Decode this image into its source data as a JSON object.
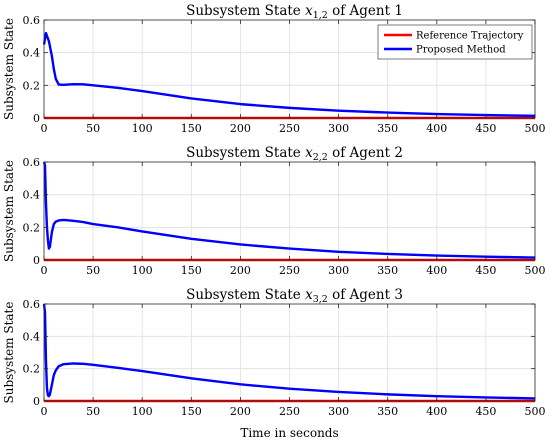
{
  "chart_data": [
    {
      "type": "line",
      "title": "Subsystem State x1,2 of Agent 1",
      "title_parts": {
        "prefix": "Subsystem State ",
        "var": "x",
        "sub": "1,2",
        "suffix": " of Agent 1"
      },
      "ylabel": "Subsystem State",
      "xlabel": "",
      "xlim": [
        0,
        500
      ],
      "ylim": [
        0,
        0.6
      ],
      "xticks": [
        0,
        50,
        100,
        150,
        200,
        250,
        300,
        350,
        400,
        450,
        500
      ],
      "yticks": [
        0,
        0.2,
        0.4,
        0.6
      ],
      "grid": true,
      "legend": {
        "placement": "top-right",
        "entries": [
          {
            "label": "Reference Trajectory",
            "color": "#ff0000"
          },
          {
            "label": "Proposed Method",
            "color": "#0000ff"
          }
        ]
      },
      "series": [
        {
          "name": "Reference Trajectory",
          "color": "#ff0000",
          "x": [
            0,
            500
          ],
          "y": [
            0,
            0
          ]
        },
        {
          "name": "Proposed Method",
          "color": "#0000ff",
          "x": [
            0,
            2,
            5,
            8,
            10,
            12,
            15,
            20,
            30,
            40,
            50,
            75,
            100,
            150,
            200,
            250,
            300,
            350,
            400,
            450,
            500
          ],
          "y": [
            0.45,
            0.52,
            0.47,
            0.38,
            0.3,
            0.24,
            0.205,
            0.203,
            0.207,
            0.206,
            0.2,
            0.185,
            0.165,
            0.12,
            0.085,
            0.062,
            0.045,
            0.033,
            0.024,
            0.018,
            0.013
          ]
        }
      ]
    },
    {
      "type": "line",
      "title": "Subsystem State x2,2 of Agent 2",
      "title_parts": {
        "prefix": "Subsystem State ",
        "var": "x",
        "sub": "2,2",
        "suffix": " of Agent 2"
      },
      "ylabel": "Subsystem State",
      "xlabel": "",
      "xlim": [
        0,
        500
      ],
      "ylim": [
        0,
        0.6
      ],
      "xticks": [
        0,
        50,
        100,
        150,
        200,
        250,
        300,
        350,
        400,
        450,
        500
      ],
      "yticks": [
        0,
        0.2,
        0.4,
        0.6
      ],
      "grid": true,
      "series": [
        {
          "name": "Reference Trajectory",
          "color": "#ff0000",
          "x": [
            0,
            500
          ],
          "y": [
            0,
            0
          ]
        },
        {
          "name": "Proposed Method",
          "color": "#0000ff",
          "x": [
            0,
            1,
            2,
            3,
            4,
            5,
            6,
            8,
            10,
            12,
            15,
            20,
            30,
            40,
            50,
            75,
            100,
            150,
            200,
            250,
            300,
            350,
            400,
            450,
            500
          ],
          "y": [
            0.6,
            0.58,
            0.35,
            0.2,
            0.12,
            0.07,
            0.08,
            0.17,
            0.22,
            0.235,
            0.242,
            0.245,
            0.24,
            0.232,
            0.22,
            0.2,
            0.175,
            0.13,
            0.095,
            0.07,
            0.05,
            0.037,
            0.027,
            0.02,
            0.015
          ]
        }
      ]
    },
    {
      "type": "line",
      "title": "Subsystem State x3,2 of Agent 3",
      "title_parts": {
        "prefix": "Subsystem State ",
        "var": "x",
        "sub": "3,2",
        "suffix": " of Agent 3"
      },
      "ylabel": "Subsystem State",
      "xlabel": "Time in seconds",
      "xlim": [
        0,
        500
      ],
      "ylim": [
        0,
        0.6
      ],
      "xticks": [
        0,
        50,
        100,
        150,
        200,
        250,
        300,
        350,
        400,
        450,
        500
      ],
      "yticks": [
        0,
        0.2,
        0.4,
        0.6
      ],
      "grid": true,
      "series": [
        {
          "name": "Reference Trajectory",
          "color": "#ff0000",
          "x": [
            0,
            500
          ],
          "y": [
            0,
            0
          ]
        },
        {
          "name": "Proposed Method",
          "color": "#0000ff",
          "x": [
            0,
            1,
            2,
            3,
            4,
            5,
            6,
            8,
            10,
            12,
            15,
            20,
            30,
            40,
            50,
            75,
            100,
            150,
            200,
            250,
            300,
            350,
            400,
            450,
            500
          ],
          "y": [
            0.6,
            0.55,
            0.25,
            0.08,
            0.035,
            0.03,
            0.04,
            0.1,
            0.16,
            0.19,
            0.215,
            0.228,
            0.232,
            0.23,
            0.224,
            0.205,
            0.185,
            0.14,
            0.103,
            0.076,
            0.056,
            0.041,
            0.03,
            0.022,
            0.016
          ]
        }
      ]
    }
  ]
}
